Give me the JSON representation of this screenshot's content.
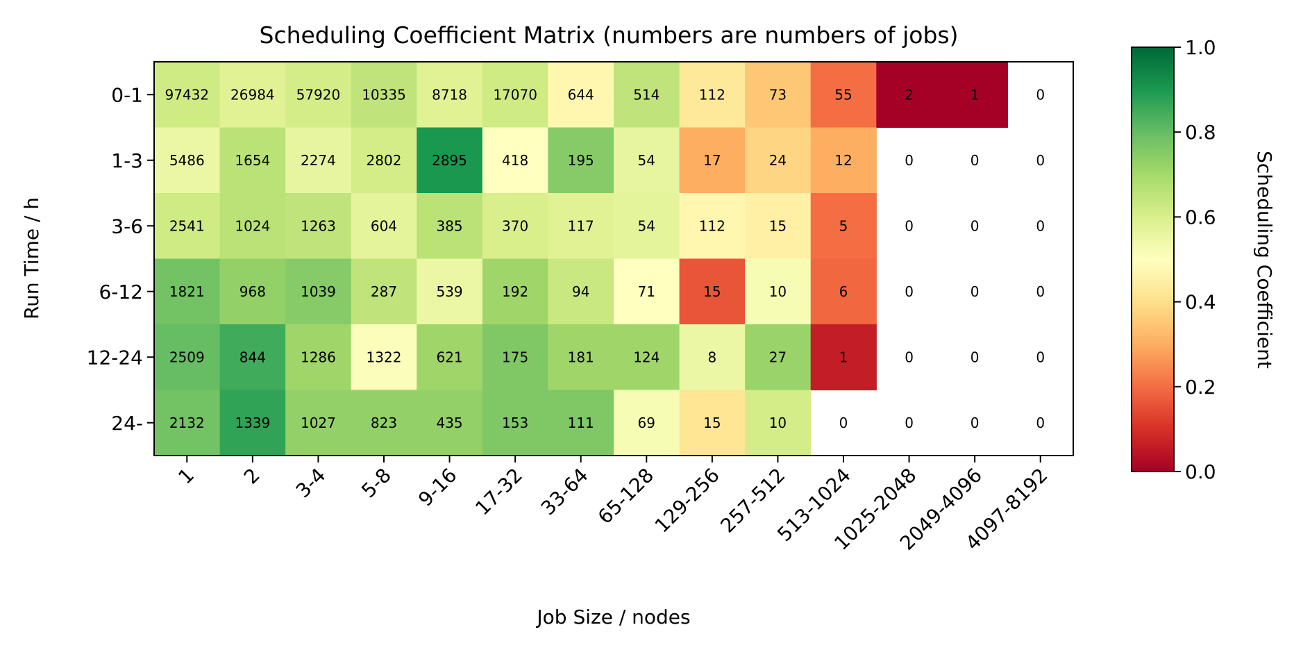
{
  "chart_data": {
    "type": "heatmap",
    "title": "Scheduling Coefficient Matrix (numbers are numbers of jobs)",
    "xlabel": "Job Size / nodes",
    "ylabel": "Run Time / h",
    "x_categories": [
      "1",
      "2",
      "3-4",
      "5-8",
      "9-16",
      "17-32",
      "33-64",
      "65-128",
      "129-256",
      "257-512",
      "513-1024",
      "1025-2048",
      "2049-4096",
      "4097-8192"
    ],
    "y_categories": [
      "0-1",
      "1-3",
      "3-6",
      "6-12",
      "12-24",
      "24-"
    ],
    "counts": [
      [
        97432,
        26984,
        57920,
        10335,
        8718,
        17070,
        644,
        514,
        112,
        73,
        55,
        2,
        1,
        0
      ],
      [
        5486,
        1654,
        2274,
        2802,
        2895,
        418,
        195,
        54,
        17,
        24,
        12,
        0,
        0,
        0
      ],
      [
        2541,
        1024,
        1263,
        604,
        385,
        370,
        117,
        54,
        112,
        15,
        5,
        0,
        0,
        0
      ],
      [
        1821,
        968,
        1039,
        287,
        539,
        192,
        94,
        71,
        15,
        10,
        6,
        0,
        0,
        0
      ],
      [
        2509,
        844,
        1286,
        1322,
        621,
        175,
        181,
        124,
        8,
        27,
        1,
        0,
        0,
        0
      ],
      [
        2132,
        1339,
        1027,
        823,
        435,
        153,
        111,
        69,
        15,
        10,
        0,
        0,
        0,
        0
      ]
    ],
    "coefficients": [
      [
        0.62,
        0.58,
        0.61,
        0.65,
        0.58,
        0.62,
        0.47,
        0.65,
        0.43,
        0.35,
        0.2,
        0.0,
        0.0,
        null
      ],
      [
        0.55,
        0.66,
        0.56,
        0.61,
        0.9,
        0.5,
        0.75,
        0.56,
        0.3,
        0.38,
        0.3,
        null,
        null,
        null
      ],
      [
        0.62,
        0.66,
        0.65,
        0.57,
        0.66,
        0.6,
        0.58,
        0.57,
        0.47,
        0.45,
        0.2,
        null,
        null,
        null
      ],
      [
        0.78,
        0.73,
        0.75,
        0.65,
        0.55,
        0.71,
        0.63,
        0.5,
        0.16,
        0.52,
        0.19,
        null,
        null,
        null
      ],
      [
        0.8,
        0.85,
        0.71,
        0.51,
        0.71,
        0.76,
        0.71,
        0.71,
        0.55,
        0.72,
        0.06,
        null,
        null,
        null
      ],
      [
        0.78,
        0.87,
        0.73,
        0.73,
        0.73,
        0.76,
        0.76,
        0.52,
        0.42,
        0.61,
        null,
        null,
        null,
        null
      ]
    ],
    "colorbar": {
      "label": "Scheduling Coefficient",
      "range": [
        0.0,
        1.0
      ],
      "ticks": [
        "0.0",
        "0.2",
        "0.4",
        "0.6",
        "0.8",
        "1.0"
      ],
      "colormap": "RdYlGn",
      "stops": [
        "#a50026",
        "#d73027",
        "#f46d43",
        "#fdae61",
        "#fee08b",
        "#ffffbf",
        "#d9ef8b",
        "#a6d96a",
        "#66bd63",
        "#1a9850",
        "#006837"
      ]
    }
  }
}
